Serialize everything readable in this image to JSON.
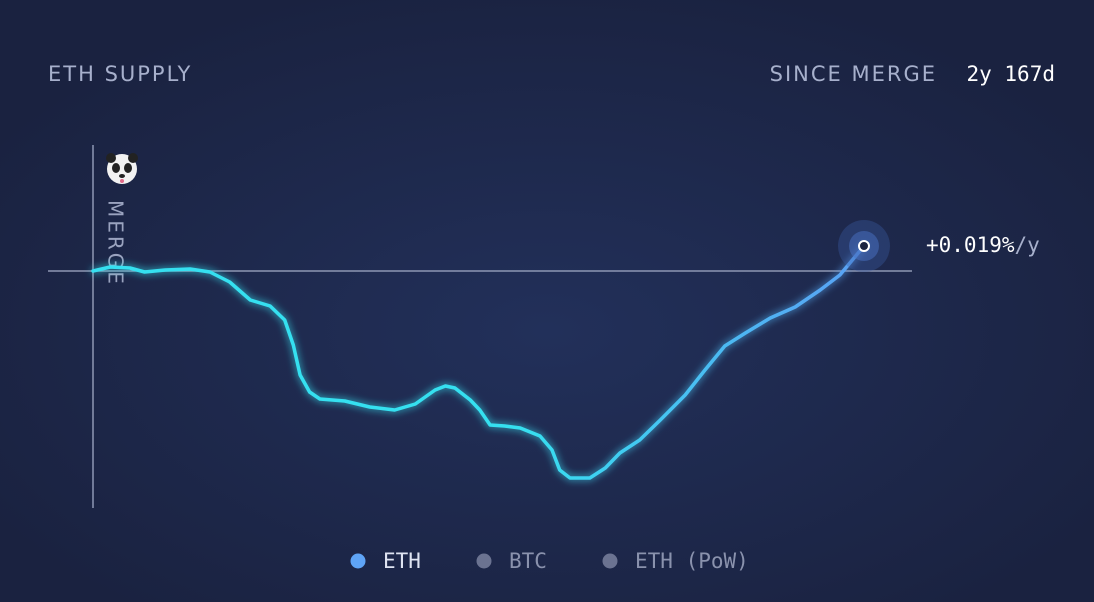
{
  "chart_data": {
    "type": "line",
    "title": "ETH SUPPLY",
    "period_label": "SINCE MERGE",
    "period_value": "2y 167d",
    "merge_marker": {
      "x": 0,
      "label": "MERGE"
    },
    "end_label": "+0.019%/y",
    "baseline": 0,
    "xlim": [
      0,
      897
    ],
    "ylim": [
      -230,
      40
    ],
    "series": [
      {
        "name": "ETH",
        "color": "#36e0f0",
        "color_end": "#5aa0f4",
        "x": [
          0,
          20,
          43,
          60,
          84,
          113,
          136,
          159,
          183,
          206,
          223,
          233,
          241,
          252,
          264,
          293,
          322,
          351,
          375,
          398,
          410,
          421,
          439,
          450,
          462,
          479,
          497,
          520,
          534,
          543,
          555,
          578,
          596,
          613,
          636,
          660,
          689,
          712,
          735,
          759,
          788,
          817,
          846,
          869,
          897
        ],
        "values": [
          0,
          4,
          3,
          -1,
          1,
          2,
          -1,
          -11,
          -29,
          -35,
          -49,
          -74,
          -104,
          -121,
          -128,
          -130,
          -136,
          -139,
          -133,
          -119,
          -115,
          -117,
          -129,
          -139,
          -154,
          -155,
          -157,
          -165,
          -179,
          -199,
          -207,
          -207,
          -197,
          -182,
          -169,
          -149,
          -124,
          -99,
          -75,
          -62,
          -47,
          -36,
          -19,
          -4,
          25
        ]
      }
    ],
    "legend": [
      {
        "name": "ETH",
        "color": "#5fa4f6"
      },
      {
        "name": "BTC",
        "color": "#6b7391"
      },
      {
        "name": "ETH (PoW)",
        "color": "#6b7391"
      }
    ]
  }
}
